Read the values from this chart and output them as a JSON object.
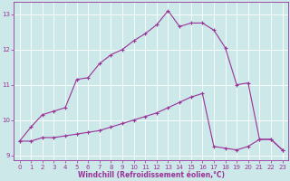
{
  "xlabel": "Windchill (Refroidissement éolien,°C)",
  "background_color": "#cce8e8",
  "grid_color": "#ffffff",
  "line_color": "#993399",
  "xlim": [
    -0.5,
    23.5
  ],
  "ylim": [
    8.85,
    13.35
  ],
  "yticks": [
    9,
    10,
    11,
    12,
    13
  ],
  "xticks": [
    0,
    1,
    2,
    3,
    4,
    5,
    6,
    7,
    8,
    9,
    10,
    11,
    12,
    13,
    14,
    15,
    16,
    17,
    18,
    19,
    20,
    21,
    22,
    23
  ],
  "line1_x": [
    0,
    1,
    2,
    3,
    4,
    5,
    6,
    7,
    8,
    9,
    10,
    11,
    12,
    13,
    14,
    15,
    16,
    17,
    18,
    19,
    20,
    21,
    22,
    23
  ],
  "line1_y": [
    9.4,
    9.8,
    10.15,
    10.25,
    10.35,
    11.15,
    11.2,
    11.6,
    11.85,
    12.0,
    12.25,
    12.45,
    12.7,
    13.1,
    12.65,
    12.75,
    12.75,
    12.55,
    12.05,
    11.0,
    11.05,
    9.45,
    9.45,
    9.15
  ],
  "line2_x": [
    0,
    1,
    2,
    3,
    4,
    5,
    6,
    7,
    8,
    9,
    10,
    11,
    12,
    13,
    14,
    15,
    16,
    17,
    18,
    19,
    20,
    21,
    22,
    23
  ],
  "line2_y": [
    9.4,
    9.4,
    9.5,
    9.5,
    9.55,
    9.6,
    9.65,
    9.7,
    9.8,
    9.9,
    10.0,
    10.1,
    10.2,
    10.35,
    10.5,
    10.65,
    10.75,
    9.25,
    9.2,
    9.15,
    9.25,
    9.45,
    9.45,
    9.15
  ]
}
